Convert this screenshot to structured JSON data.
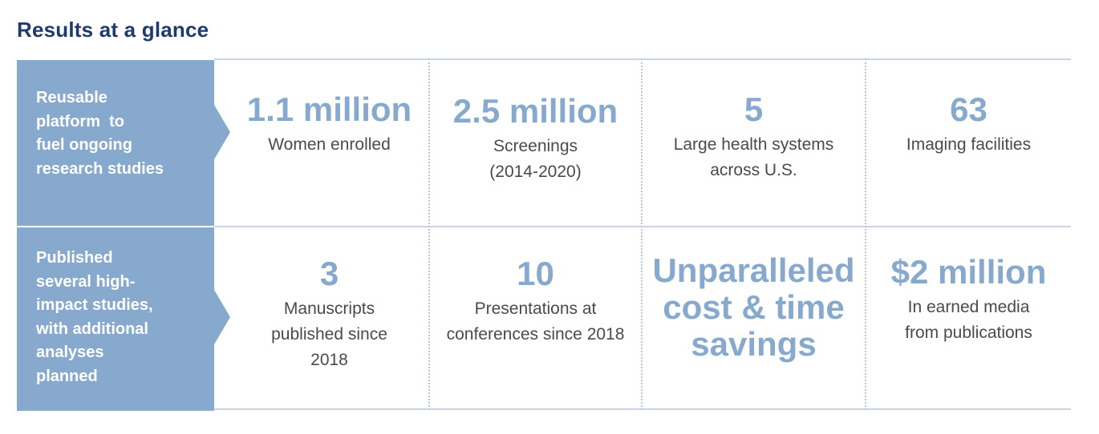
{
  "title": "Results at a glance",
  "rows": [
    {
      "label": [
        "Reusable",
        "platform  to",
        "fuel ongoing",
        "research studies"
      ],
      "stats": [
        {
          "value": "1.1 million",
          "desc": [
            "Women enrolled"
          ]
        },
        {
          "value": "2.5 million",
          "desc": [
            "Screenings",
            "(2014-2020)"
          ]
        },
        {
          "value": "5",
          "desc": [
            "Large health systems",
            "across U.S."
          ]
        },
        {
          "value": "63",
          "desc": [
            "Imaging facilities"
          ]
        }
      ]
    },
    {
      "label": [
        "Published",
        "several high-",
        "impact studies,",
        "with additional",
        "analyses",
        "planned"
      ],
      "stats": [
        {
          "value": "3",
          "desc": [
            "Manuscripts",
            "published since",
            "2018"
          ]
        },
        {
          "value": "10",
          "desc": [
            "Presentations at",
            "conferences since 2018"
          ]
        },
        {
          "value_lines": [
            "Unparalleled",
            "cost & time",
            "savings"
          ]
        },
        {
          "value": "$2 million",
          "desc": [
            "In earned media",
            "from publications"
          ]
        }
      ]
    }
  ],
  "colors": {
    "title": "#1f3a6e",
    "label_bg": "#86a9cd",
    "stat_value": "#86a9cd",
    "stat_desc": "#4a4a4a"
  }
}
